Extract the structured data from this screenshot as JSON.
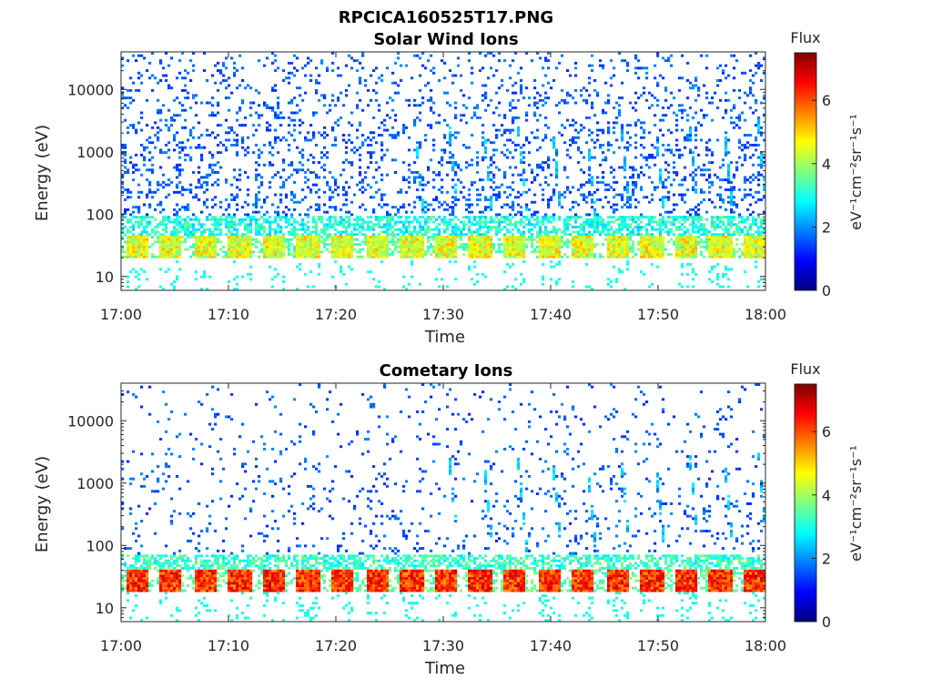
{
  "figure": {
    "title": "RPCICA160525T17.PNG"
  },
  "colormap": {
    "stops": [
      "#00007f",
      "#0000ff",
      "#0080ff",
      "#00ffff",
      "#80ff80",
      "#ffff00",
      "#ff8000",
      "#ff0000",
      "#7f0000"
    ]
  },
  "chart_data": [
    {
      "type": "heatmap",
      "title": "Solar Wind Ions",
      "xlabel": "Time",
      "ylabel": "Energy (eV)",
      "x_ticks": [
        "17:00",
        "17:10",
        "17:20",
        "17:30",
        "17:40",
        "17:50",
        "18:00"
      ],
      "x_range": [
        "17:00",
        "18:00"
      ],
      "y_scale": "log",
      "y_ticks": [
        "10",
        "100",
        "1000",
        "10000"
      ],
      "y_range": [
        6,
        40000
      ],
      "colorbar": {
        "label": "Flux",
        "units": "eV⁻¹cm⁻²sr⁻¹s⁻¹",
        "ticks": [
          "0",
          "2",
          "4",
          "6"
        ],
        "range": [
          0,
          7.5
        ]
      },
      "features": {
        "scan_cycle_minutes": 3.2,
        "core_band_eV": [
          20,
          45
        ],
        "core_band_flux": 4.5,
        "upper_band_eV": [
          50,
          90
        ],
        "upper_band_flux": 3.0,
        "sparse_counts_flux": 1.2,
        "sparse_counts_range_eV": [
          100,
          40000
        ],
        "dispersed_streaks_after": "17:25",
        "low_energy_counts_eV": [
          6,
          18
        ]
      }
    },
    {
      "type": "heatmap",
      "title": "Cometary Ions",
      "xlabel": "Time",
      "ylabel": "Energy (eV)",
      "x_ticks": [
        "17:00",
        "17:10",
        "17:20",
        "17:30",
        "17:40",
        "17:50",
        "18:00"
      ],
      "x_range": [
        "17:00",
        "18:00"
      ],
      "y_scale": "log",
      "y_ticks": [
        "10",
        "100",
        "1000",
        "10000"
      ],
      "y_range": [
        6,
        40000
      ],
      "colorbar": {
        "label": "Flux",
        "units": "eV⁻¹cm⁻²sr⁻¹s⁻¹",
        "ticks": [
          "0",
          "2",
          "4",
          "6"
        ],
        "range": [
          0,
          7.5
        ]
      },
      "features": {
        "scan_cycle_minutes": 3.2,
        "core_band_eV": [
          18,
          40
        ],
        "core_band_flux": 6.2,
        "upper_band_eV": [
          40,
          70
        ],
        "upper_band_flux": 3.2,
        "sparse_counts_flux": 1.2,
        "sparse_counts_range_eV": [
          100,
          40000
        ],
        "dispersed_streaks_after": "17:30",
        "low_energy_counts_eV": [
          6,
          18
        ]
      }
    }
  ]
}
